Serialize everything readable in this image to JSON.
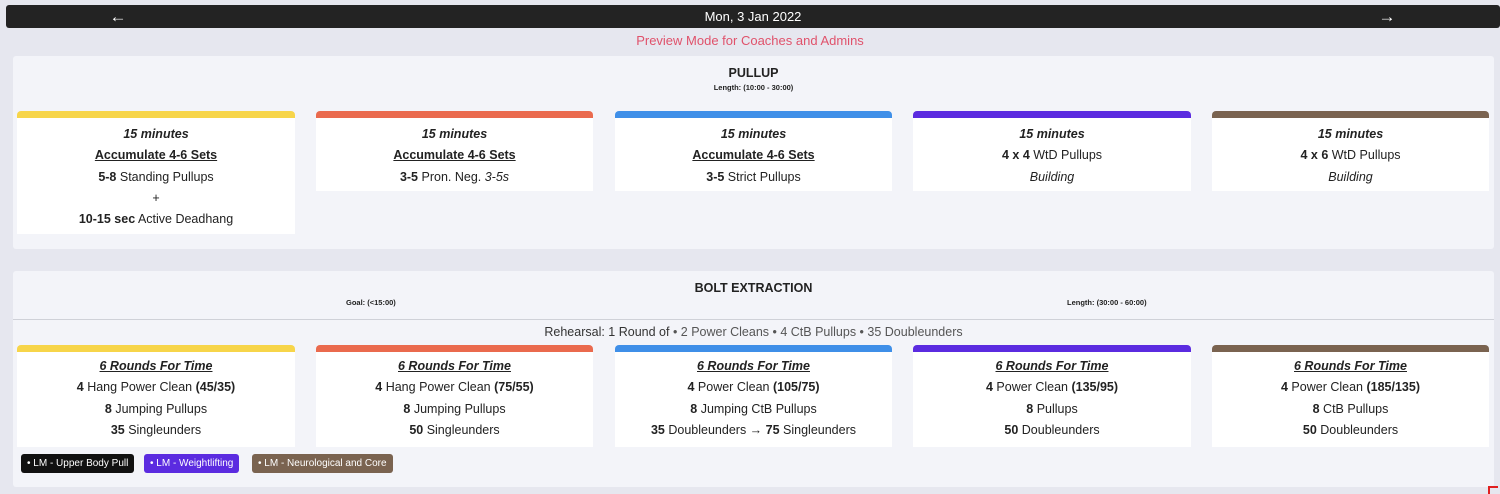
{
  "header": {
    "date": "Mon, 3 Jan 2022",
    "prev_icon": "arrow-left-icon",
    "next_icon": "arrow-right-icon",
    "preview_notice": "Preview Mode for Coaches and Admins"
  },
  "colors": {
    "level_1": "#f7d54a",
    "level_2": "#ea6a4e",
    "level_3": "#3f8fe8",
    "level_4": "#5b2be0",
    "level_5": "#7a6350",
    "preview_text": "#e0526b"
  },
  "section1": {
    "title": "PULLUP",
    "length": "Length: (10:00 - 30:00)",
    "cards": [
      {
        "time": "15 minutes",
        "scheme": "Accumulate 4-6 Sets",
        "l1_num": "5-8",
        "l1_text": " Standing Pullups",
        "l2": "+",
        "l3_num": "10-15 sec",
        "l3_text": " Active Deadhang"
      },
      {
        "time": "15 minutes",
        "scheme": "Accumulate 4-6 Sets",
        "l1_num": "3-5",
        "l1_text": " Pron. Neg. ",
        "l1_ital": "3-5s"
      },
      {
        "time": "15 minutes",
        "scheme": "Accumulate 4-6 Sets",
        "l1_num": "3-5",
        "l1_text": " Strict Pullups"
      },
      {
        "time": "15 minutes",
        "l1_num": "4 x 4",
        "l1_text": " WtD Pullups",
        "l2_ital": "Building"
      },
      {
        "time": "15 minutes",
        "l1_num": "4 x 6",
        "l1_text": " WtD Pullups",
        "l2_ital": "Building"
      }
    ]
  },
  "section2": {
    "title": "BOLT EXTRACTION",
    "goal": "Goal: (<15:00)",
    "length": "Length: (30:00 - 60:00)",
    "rehearsal_label": "Rehearsal: 1 Round of",
    "rehearsal_items": " • 2 Power Cleans • 4 CtB Pullups • 35 Doubleunders",
    "cards": [
      {
        "scheme": "6 Rounds For Time",
        "a_num": "4",
        "a_text": " Hang Power Clean ",
        "a_wt": "(45/35)",
        "b_num": "8",
        "b_text": " Jumping Pullups",
        "c_num": "35",
        "c_text": " Singleunders"
      },
      {
        "scheme": "6 Rounds For Time",
        "a_num": "4",
        "a_text": " Hang Power Clean ",
        "a_wt": "(75/55)",
        "b_num": "8",
        "b_text": " Jumping Pullups",
        "c_num": "50",
        "c_text": " Singleunders"
      },
      {
        "scheme": "6 Rounds For Time",
        "a_num": "4",
        "a_text": " Power Clean ",
        "a_wt": "(105/75)",
        "b_num": "8",
        "b_text": " Jumping CtB Pullups",
        "c_num": "35",
        "c_text": " Doubleunders → ",
        "c_num2": "75",
        "c_text2": " Singleunders"
      },
      {
        "scheme": "6 Rounds For Time",
        "a_num": "4",
        "a_text": " Power Clean ",
        "a_wt": "(135/95)",
        "b_num": "8",
        "b_text": " Pullups",
        "c_num": "50",
        "c_text": " Doubleunders"
      },
      {
        "scheme": "6 Rounds For Time",
        "a_num": "4",
        "a_text": " Power Clean ",
        "a_wt": "(185/135)",
        "b_num": "8",
        "b_text": " CtB Pullups",
        "c_num": "50",
        "c_text": " Doubleunders"
      }
    ],
    "tags": [
      {
        "label": "• LM - Upper Body Pull",
        "color": "#111111"
      },
      {
        "label": "• LM - Weightlifting",
        "color": "#5b2be0"
      },
      {
        "label": "• LM - Neurological and Core",
        "color": "#7a6350"
      }
    ]
  }
}
